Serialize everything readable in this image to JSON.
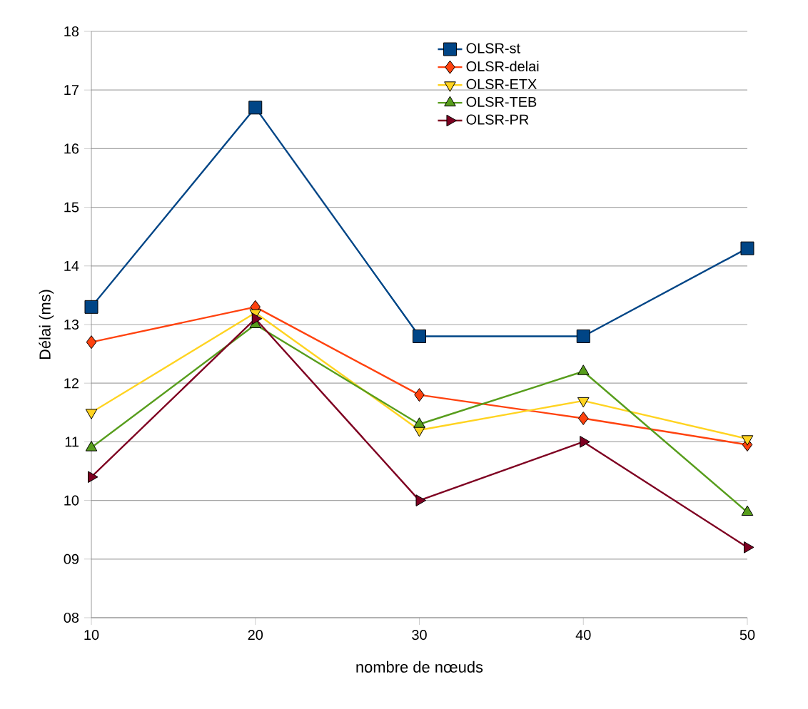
{
  "chart_data": {
    "type": "line",
    "xlabel": "nombre de nœuds",
    "ylabel": "Délai (ms)",
    "x": [
      10,
      20,
      30,
      40,
      50
    ],
    "xlim": [
      10,
      50
    ],
    "xticks": [
      10,
      20,
      30,
      40,
      50
    ],
    "ylim": [
      8,
      18
    ],
    "yticks": [
      {
        "value": 8,
        "label": "08"
      },
      {
        "value": 9,
        "label": "09"
      },
      10,
      11,
      12,
      13,
      14,
      15,
      16,
      17,
      18
    ],
    "grid": "y",
    "legend": "top",
    "line_style": "solid",
    "series": [
      {
        "name": "OLSR-st",
        "color": "#004586",
        "marker": "square",
        "values": [
          13.3,
          16.7,
          12.8,
          12.8,
          14.3
        ]
      },
      {
        "name": "OLSR-delai",
        "color": "#ff420e",
        "marker": "diamond",
        "values": [
          12.7,
          13.3,
          11.8,
          11.4,
          10.95
        ]
      },
      {
        "name": "OLSR-ETX",
        "color": "#ffd320",
        "marker": "triangle-down",
        "values": [
          11.5,
          13.2,
          11.2,
          11.7,
          11.05
        ]
      },
      {
        "name": "OLSR-TEB",
        "color": "#579d1c",
        "marker": "triangle",
        "values": [
          10.9,
          13.0,
          11.3,
          12.2,
          9.8
        ]
      },
      {
        "name": "OLSR-PR",
        "color": "#7e0021",
        "marker": "triangle-right",
        "values": [
          10.4,
          13.1,
          10.0,
          11.0,
          9.2
        ]
      }
    ]
  }
}
